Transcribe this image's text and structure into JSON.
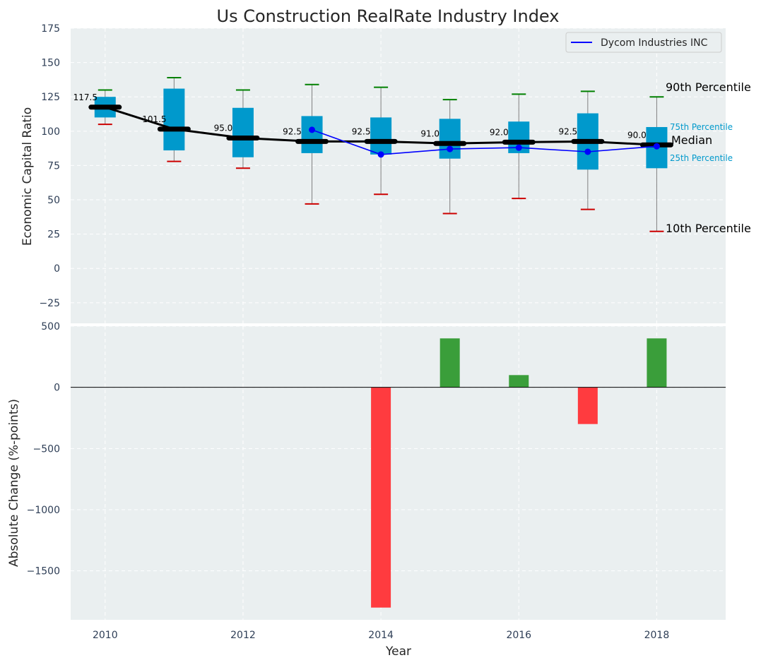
{
  "chart_data": [
    {
      "type": "box",
      "title": "Us Construction RealRate Industry Index",
      "xlabel": "",
      "ylabel": "Economic Capital Ratio",
      "xlim": [
        2009.5,
        2019
      ],
      "ylim": [
        -40,
        175
      ],
      "yticks": [
        -25,
        0,
        25,
        50,
        75,
        100,
        125,
        150,
        175
      ],
      "yticklabels": [
        "−25",
        "0",
        "25",
        "50",
        "75",
        "100",
        "125",
        "150",
        "175"
      ],
      "grid": true,
      "legend": {
        "position": "top-right",
        "entries": [
          "Dycom Industries INC"
        ]
      },
      "years": [
        2010,
        2011,
        2012,
        2013,
        2014,
        2015,
        2016,
        2017,
        2018
      ],
      "p10": [
        105,
        78,
        73,
        47,
        54,
        40,
        51,
        43,
        27
      ],
      "p25": [
        110,
        86,
        81,
        84,
        83,
        80,
        84,
        72,
        73
      ],
      "median": [
        117.5,
        101.5,
        95.0,
        92.5,
        92.5,
        91.0,
        92.0,
        92.5,
        90.0
      ],
      "p75": [
        125,
        131,
        117,
        111,
        110,
        109,
        107,
        113,
        103
      ],
      "p90": [
        130,
        139,
        130,
        134,
        132,
        123,
        127,
        129,
        125
      ],
      "median_labels": [
        "117.5",
        "101.5",
        "95.0",
        "92.5",
        "92.5",
        "91.0",
        "92.0",
        "92.5",
        "90.0"
      ],
      "series": [
        {
          "name": "Dycom Industries INC",
          "color": "#0000ff",
          "x": [
            2013,
            2014,
            2015,
            2016,
            2017,
            2018
          ],
          "values": [
            101,
            83,
            87,
            88,
            85,
            89
          ]
        }
      ],
      "annotations": {
        "p90": "90th Percentile",
        "p75": "75th Percentile",
        "median": "Median",
        "p25": "25th Percentile",
        "p10": "10th Percentile"
      }
    },
    {
      "type": "bar",
      "xlabel": "Year",
      "ylabel": "Absolute Change (%-points)",
      "xlim": [
        2009.5,
        2019
      ],
      "ylim": [
        -1900,
        500
      ],
      "yticks": [
        -1500,
        -1000,
        -500,
        0,
        500
      ],
      "yticklabels": [
        "−1500",
        "−1000",
        "−500",
        "0",
        "500"
      ],
      "xticks": [
        2010,
        2012,
        2014,
        2016,
        2018
      ],
      "xticklabels": [
        "2010",
        "2012",
        "2014",
        "2016",
        "2018"
      ],
      "grid": true,
      "categories": [
        2014,
        2015,
        2016,
        2017,
        2018
      ],
      "values": [
        -1800,
        400,
        100,
        -300,
        400
      ],
      "positive_color": "#3a9e3a",
      "negative_color": "#ff3b3f"
    }
  ],
  "colors": {
    "panel_bg": "#eaeff0",
    "box": "#0099cc",
    "median_line": "#000000",
    "whisker": "#808080",
    "p90_cap": "#008000",
    "p10_cap": "#cc0000",
    "label_accent": "#0099cc",
    "tick_text": "#2e3e56"
  }
}
